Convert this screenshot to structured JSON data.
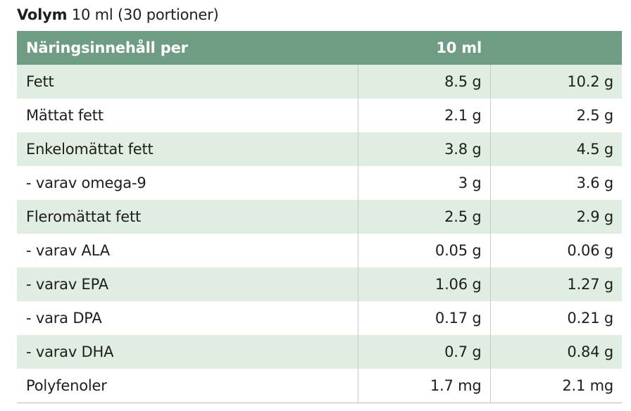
{
  "volume": {
    "label": "Volym",
    "value": "10 ml (30 portioner)"
  },
  "table": {
    "header": {
      "name": "Näringsinnehåll per",
      "col1": "10 ml",
      "col2": ""
    },
    "rows": [
      {
        "name": "Fett",
        "v1": "8.5 g",
        "v2": "10.2 g"
      },
      {
        "name": "Mättat fett",
        "v1": "2.1 g",
        "v2": "2.5 g"
      },
      {
        "name": "Enkelomättat fett",
        "v1": "3.8 g",
        "v2": "4.5 g"
      },
      {
        "name": "- varav omega-9",
        "v1": "3 g",
        "v2": "3.6 g"
      },
      {
        "name": "Fleromättat fett",
        "v1": "2.5 g",
        "v2": "2.9 g"
      },
      {
        "name": "- varav ALA",
        "v1": "0.05 g",
        "v2": "0.06 g"
      },
      {
        "name": "- varav EPA",
        "v1": "1.06 g",
        "v2": "1.27 g"
      },
      {
        "name": "- vara DPA",
        "v1": "0.17 g",
        "v2": "0.21 g"
      },
      {
        "name": "- varav DHA",
        "v1": "0.7 g",
        "v2": "0.84 g"
      },
      {
        "name": "Polyfenoler",
        "v1": "1.7 mg",
        "v2": "2.1 mg"
      }
    ]
  },
  "colors": {
    "header_bg": "#6f9d84",
    "stripe_bg": "#e0ede3",
    "text": "#1e1e1e"
  }
}
